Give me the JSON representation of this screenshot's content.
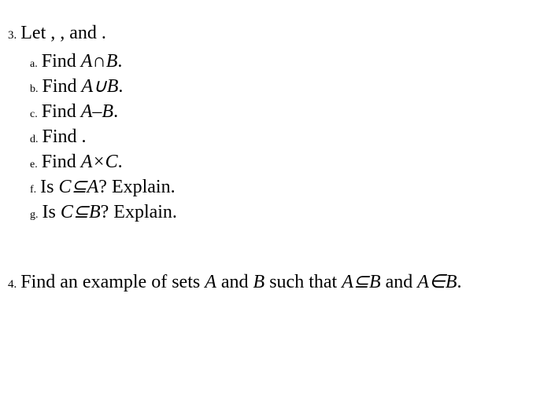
{
  "background_color": "#ffffff",
  "text_color": "#000000",
  "font_family": "Times New Roman",
  "main_fontsize": 24,
  "numbering_fontsize": 15,
  "sub_numbering_fontsize": 14,
  "problems": [
    {
      "number": "3.",
      "stem_prefix": "Let , , and .",
      "items": [
        {
          "num": "a.",
          "prefix": "Find ",
          "math": "A∩B",
          "suffix": "."
        },
        {
          "num": "b.",
          "prefix": "Find ",
          "math": "A∪B",
          "suffix": "."
        },
        {
          "num": "c.",
          "prefix": "Find ",
          "math": "A–B",
          "suffix": "."
        },
        {
          "num": "d.",
          "prefix": "Find .",
          "math": "",
          "suffix": ""
        },
        {
          "num": "e.",
          "prefix": "Find ",
          "math": "A×C",
          "suffix": "."
        },
        {
          "num": "f.",
          "prefix": "Is ",
          "math": "C⊆A",
          "suffix": "? Explain."
        },
        {
          "num": "g.",
          "prefix": "Is ",
          "math": "C⊆B",
          "suffix": "? Explain."
        }
      ]
    },
    {
      "number": "4.",
      "text_parts": {
        "p1": "Find an example of sets ",
        "A": "A",
        "p2": " and ",
        "B": "B",
        "p3": " such that ",
        "m1": "A⊆B",
        "p4": " and ",
        "m2": "A∈B",
        "p5": "."
      }
    }
  ]
}
